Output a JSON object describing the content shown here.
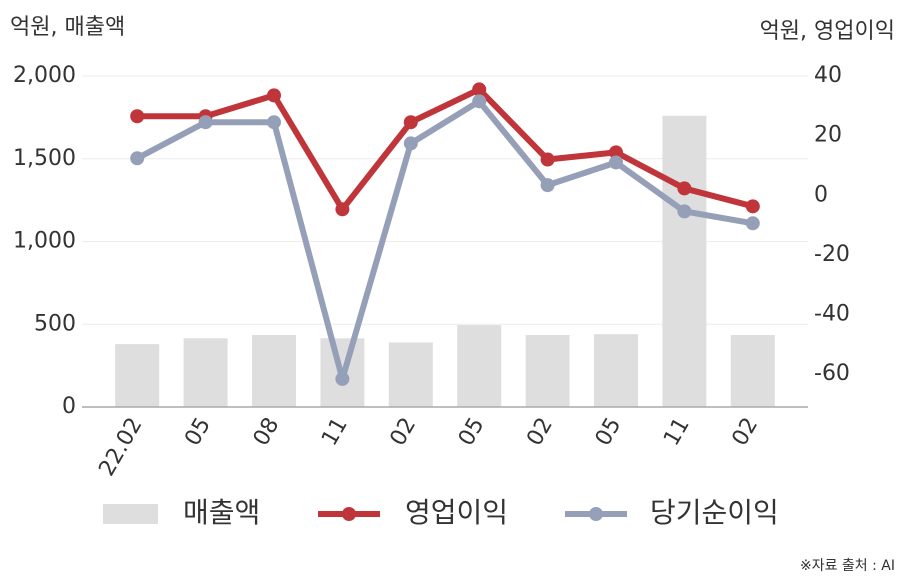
{
  "chart_data": {
    "type": "combo",
    "y_label": "억원, 매출액",
    "y2_label": "억원, 영업이익",
    "categories": [
      "22.02",
      "05",
      "08",
      "11",
      "02",
      "05",
      "02",
      "05",
      "11",
      "02"
    ],
    "series": [
      {
        "name": "매출액",
        "type": "bar",
        "color": "#dedede",
        "values": [
          380,
          415,
          435,
          415,
          390,
          495,
          435,
          440,
          1760,
          435
        ]
      },
      {
        "name": "영업이익",
        "type": "line",
        "axis": "y2",
        "color": "#c0353a",
        "values": [
          26.5,
          26.5,
          33.5,
          -4.7,
          24.5,
          35.5,
          12,
          14.4,
          2.3,
          -3.7
        ]
      },
      {
        "name": "당기순이익",
        "type": "line",
        "axis": "y2",
        "color": "#95a0b8",
        "values": [
          12.4,
          24.5,
          24.5,
          -61.6,
          17.4,
          31.5,
          3.4,
          11,
          -5.4,
          -9.4
        ]
      }
    ],
    "ylim": [
      0,
      2000
    ],
    "yticks": [
      0,
      500,
      {
        "value": 1000,
        "label": "1,000"
      },
      {
        "value": 1500,
        "label": "1,500"
      },
      {
        "value": 2000,
        "label": "2,000"
      }
    ],
    "y2lim": [
      -71,
      40
    ],
    "y2ticks": [
      -60,
      -40,
      -20,
      0,
      20,
      40
    ],
    "grid": true,
    "source_note": "※자료 출처 : AI"
  }
}
